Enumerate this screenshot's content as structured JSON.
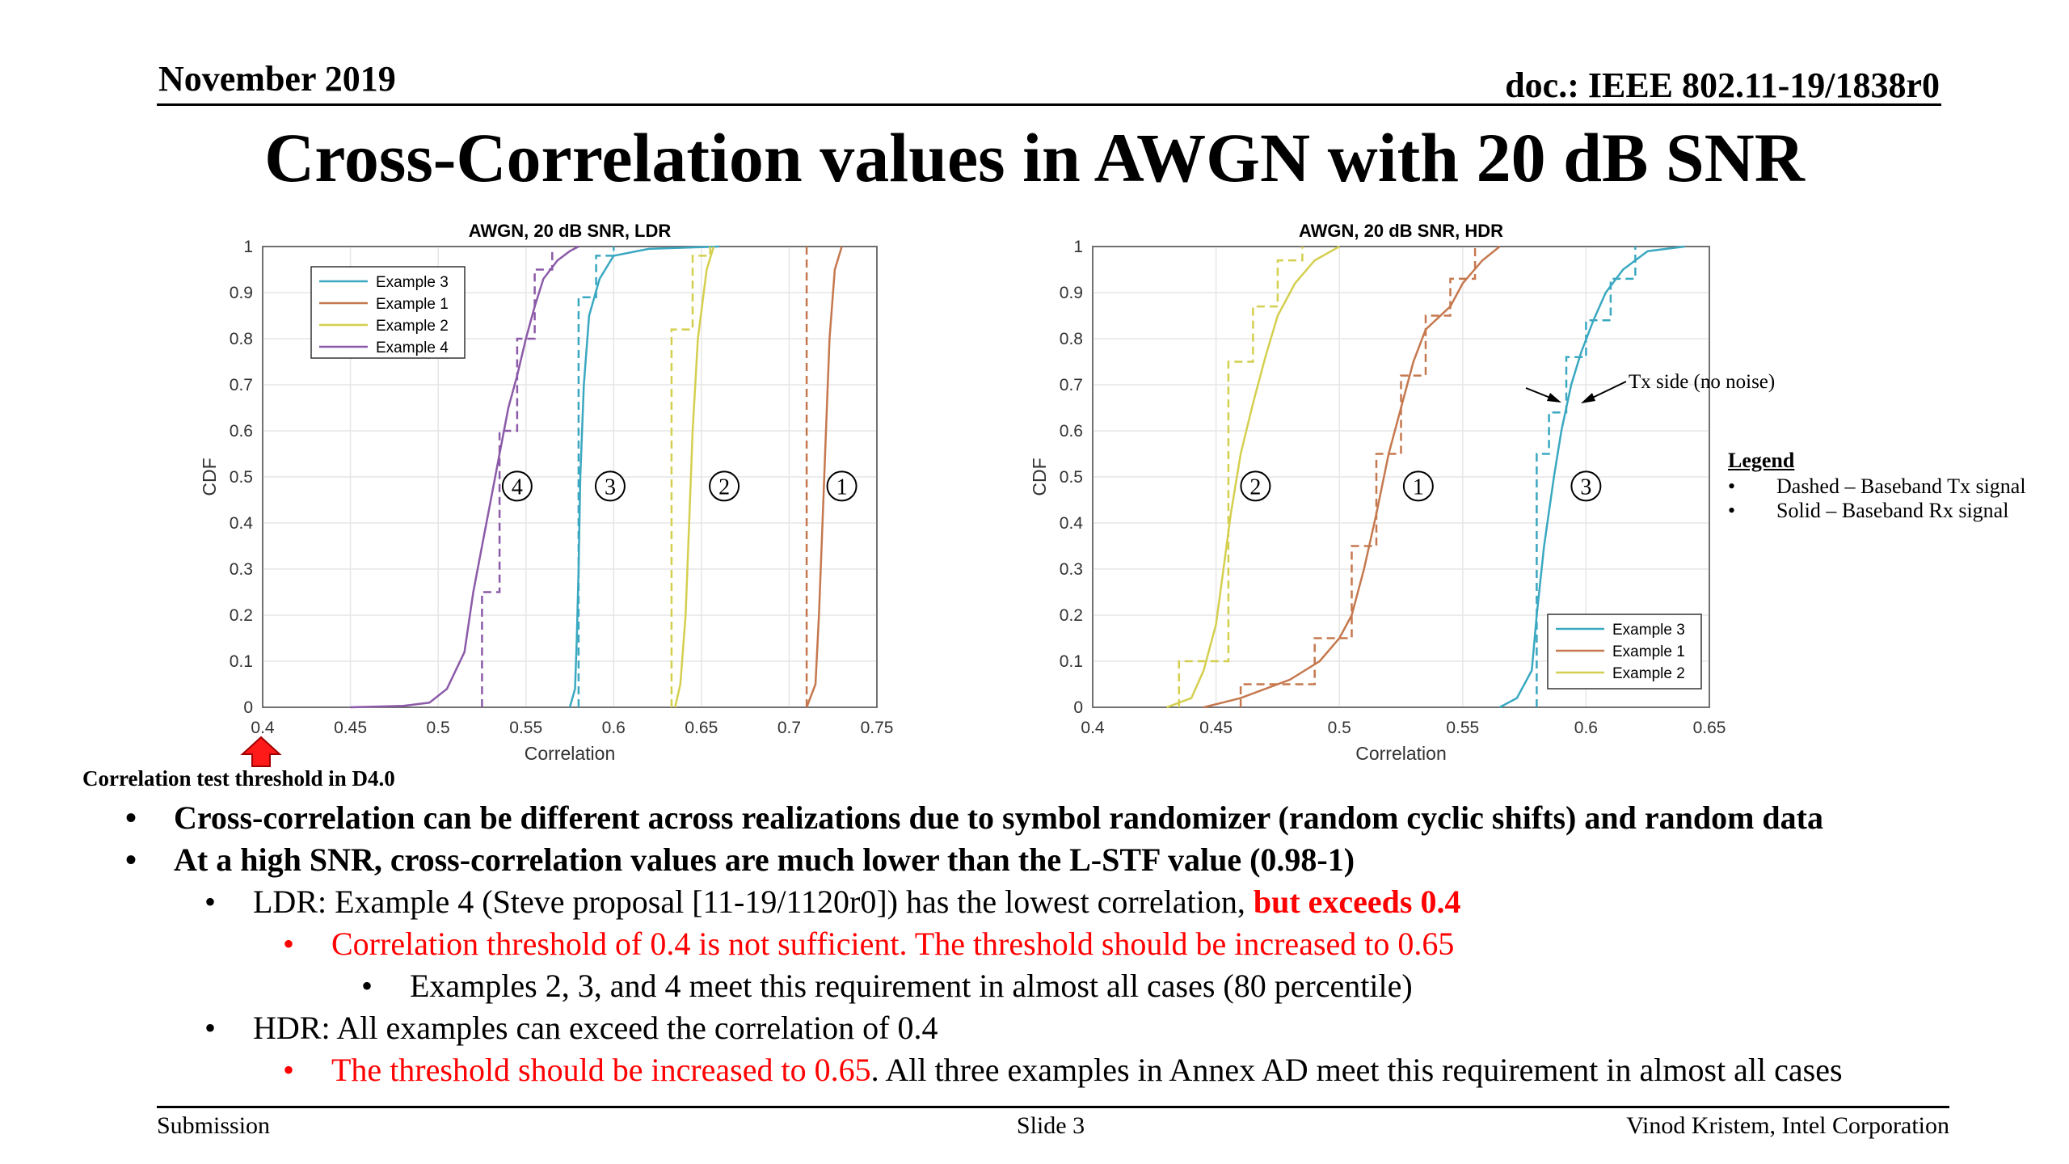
{
  "header": {
    "date": "November 2019",
    "doc": "doc.: IEEE 802.11-19/1838r0"
  },
  "title": "Cross-Correlation values in AWGN with 20 dB SNR",
  "colors": {
    "example3": "#3aa8c1",
    "example1": "#c5784e",
    "example2": "#d4cf4e",
    "example4": "#8b5aa8",
    "red": "#ff0000",
    "grid": "#e6e6e6"
  },
  "chart_data": [
    {
      "type": "line",
      "title": "AWGN, 20 dB SNR, LDR",
      "xlabel": "Correlation",
      "ylabel": "CDF",
      "xlim": [
        0.4,
        0.75
      ],
      "ylim": [
        0,
        1
      ],
      "xticks": [
        "0.4",
        "0.45",
        "0.5",
        "0.55",
        "0.6",
        "0.65",
        "0.7",
        "0.75"
      ],
      "yticks": [
        "0",
        "0.1",
        "0.2",
        "0.3",
        "0.4",
        "0.5",
        "0.6",
        "0.7",
        "0.8",
        "0.9",
        "1"
      ],
      "grid": true,
      "legend_position": "top-left",
      "legend": [
        "Example 3",
        "Example 1",
        "Example 2",
        "Example 4"
      ],
      "series": [
        {
          "name": "Example 3",
          "color_key": "example3",
          "solid": [
            [
              0.575,
              0
            ],
            [
              0.578,
              0.04
            ],
            [
              0.579,
              0.15
            ],
            [
              0.58,
              0.3
            ],
            [
              0.581,
              0.5
            ],
            [
              0.583,
              0.7
            ],
            [
              0.586,
              0.85
            ],
            [
              0.592,
              0.93
            ],
            [
              0.6,
              0.98
            ],
            [
              0.62,
              0.995
            ],
            [
              0.66,
              1
            ]
          ],
          "dashed": [
            [
              0.58,
              0
            ],
            [
              0.58,
              0.89
            ],
            [
              0.59,
              0.89
            ],
            [
              0.59,
              0.98
            ],
            [
              0.6,
              0.98
            ],
            [
              0.6,
              1
            ]
          ]
        },
        {
          "name": "Example 1",
          "color_key": "example1",
          "solid": [
            [
              0.71,
              0
            ],
            [
              0.715,
              0.05
            ],
            [
              0.717,
              0.2
            ],
            [
              0.719,
              0.4
            ],
            [
              0.721,
              0.6
            ],
            [
              0.723,
              0.8
            ],
            [
              0.726,
              0.95
            ],
            [
              0.73,
              1
            ]
          ],
          "dashed": [
            [
              0.71,
              0
            ],
            [
              0.71,
              1
            ]
          ]
        },
        {
          "name": "Example 2",
          "color_key": "example2",
          "solid": [
            [
              0.635,
              0
            ],
            [
              0.638,
              0.05
            ],
            [
              0.641,
              0.2
            ],
            [
              0.643,
              0.4
            ],
            [
              0.645,
              0.6
            ],
            [
              0.648,
              0.8
            ],
            [
              0.653,
              0.95
            ],
            [
              0.657,
              1
            ]
          ],
          "dashed": [
            [
              0.633,
              0
            ],
            [
              0.633,
              0.82
            ],
            [
              0.645,
              0.82
            ],
            [
              0.645,
              0.98
            ],
            [
              0.655,
              0.98
            ],
            [
              0.655,
              1
            ]
          ]
        },
        {
          "name": "Example 4",
          "color_key": "example4",
          "solid": [
            [
              0.45,
              0
            ],
            [
              0.48,
              0.003
            ],
            [
              0.495,
              0.01
            ],
            [
              0.505,
              0.04
            ],
            [
              0.515,
              0.12
            ],
            [
              0.52,
              0.25
            ],
            [
              0.525,
              0.35
            ],
            [
              0.53,
              0.45
            ],
            [
              0.535,
              0.55
            ],
            [
              0.54,
              0.65
            ],
            [
              0.545,
              0.72
            ],
            [
              0.55,
              0.8
            ],
            [
              0.555,
              0.87
            ],
            [
              0.56,
              0.93
            ],
            [
              0.568,
              0.97
            ],
            [
              0.575,
              0.99
            ],
            [
              0.58,
              1
            ]
          ],
          "dashed": [
            [
              0.525,
              0
            ],
            [
              0.525,
              0.25
            ],
            [
              0.535,
              0.25
            ],
            [
              0.535,
              0.6
            ],
            [
              0.545,
              0.6
            ],
            [
              0.545,
              0.8
            ],
            [
              0.555,
              0.8
            ],
            [
              0.555,
              0.95
            ],
            [
              0.565,
              0.95
            ],
            [
              0.565,
              1
            ]
          ]
        }
      ],
      "annotations": [
        {
          "label": "4",
          "x": 0.545,
          "y": 0.48
        },
        {
          "label": "3",
          "x": 0.598,
          "y": 0.48
        },
        {
          "label": "2",
          "x": 0.663,
          "y": 0.48
        },
        {
          "label": "1",
          "x": 0.73,
          "y": 0.48
        }
      ]
    },
    {
      "type": "line",
      "title": "AWGN, 20 dB SNR, HDR",
      "xlabel": "Correlation",
      "ylabel": "CDF",
      "xlim": [
        0.4,
        0.65
      ],
      "ylim": [
        0,
        1
      ],
      "xticks": [
        "0.4",
        "0.45",
        "0.5",
        "0.55",
        "0.6",
        "0.65"
      ],
      "yticks": [
        "0",
        "0.1",
        "0.2",
        "0.3",
        "0.4",
        "0.5",
        "0.6",
        "0.7",
        "0.8",
        "0.9",
        "1"
      ],
      "grid": true,
      "legend_position": "bottom-right",
      "legend": [
        "Example 3",
        "Example 1",
        "Example 2"
      ],
      "series": [
        {
          "name": "Example 3",
          "color_key": "example3",
          "solid": [
            [
              0.565,
              0
            ],
            [
              0.572,
              0.02
            ],
            [
              0.578,
              0.08
            ],
            [
              0.58,
              0.2
            ],
            [
              0.583,
              0.35
            ],
            [
              0.587,
              0.5
            ],
            [
              0.59,
              0.6
            ],
            [
              0.594,
              0.7
            ],
            [
              0.598,
              0.77
            ],
            [
              0.603,
              0.84
            ],
            [
              0.608,
              0.9
            ],
            [
              0.615,
              0.95
            ],
            [
              0.625,
              0.99
            ],
            [
              0.64,
              1
            ]
          ],
          "dashed": [
            [
              0.58,
              0
            ],
            [
              0.58,
              0.55
            ],
            [
              0.585,
              0.55
            ],
            [
              0.585,
              0.64
            ],
            [
              0.592,
              0.64
            ],
            [
              0.592,
              0.76
            ],
            [
              0.6,
              0.76
            ],
            [
              0.6,
              0.84
            ],
            [
              0.61,
              0.84
            ],
            [
              0.61,
              0.93
            ],
            [
              0.62,
              0.93
            ],
            [
              0.62,
              1
            ]
          ]
        },
        {
          "name": "Example 1",
          "color_key": "example1",
          "solid": [
            [
              0.445,
              0
            ],
            [
              0.46,
              0.02
            ],
            [
              0.48,
              0.06
            ],
            [
              0.492,
              0.1
            ],
            [
              0.5,
              0.15
            ],
            [
              0.505,
              0.2
            ],
            [
              0.51,
              0.3
            ],
            [
              0.515,
              0.42
            ],
            [
              0.52,
              0.55
            ],
            [
              0.525,
              0.65
            ],
            [
              0.53,
              0.75
            ],
            [
              0.535,
              0.82
            ],
            [
              0.545,
              0.87
            ],
            [
              0.55,
              0.92
            ],
            [
              0.558,
              0.97
            ],
            [
              0.565,
              1
            ]
          ],
          "dashed": [
            [
              0.46,
              0
            ],
            [
              0.46,
              0.05
            ],
            [
              0.49,
              0.05
            ],
            [
              0.49,
              0.15
            ],
            [
              0.505,
              0.15
            ],
            [
              0.505,
              0.35
            ],
            [
              0.515,
              0.35
            ],
            [
              0.515,
              0.55
            ],
            [
              0.525,
              0.55
            ],
            [
              0.525,
              0.72
            ],
            [
              0.535,
              0.72
            ],
            [
              0.535,
              0.85
            ],
            [
              0.545,
              0.85
            ],
            [
              0.545,
              0.93
            ],
            [
              0.555,
              0.93
            ],
            [
              0.555,
              1
            ]
          ]
        },
        {
          "name": "Example 2",
          "color_key": "example2",
          "solid": [
            [
              0.43,
              0
            ],
            [
              0.44,
              0.02
            ],
            [
              0.445,
              0.08
            ],
            [
              0.45,
              0.18
            ],
            [
              0.453,
              0.3
            ],
            [
              0.456,
              0.42
            ],
            [
              0.46,
              0.55
            ],
            [
              0.465,
              0.66
            ],
            [
              0.47,
              0.76
            ],
            [
              0.475,
              0.85
            ],
            [
              0.482,
              0.92
            ],
            [
              0.49,
              0.97
            ],
            [
              0.5,
              1
            ]
          ],
          "dashed": [
            [
              0.435,
              0
            ],
            [
              0.435,
              0.1
            ],
            [
              0.455,
              0.1
            ],
            [
              0.455,
              0.75
            ],
            [
              0.465,
              0.75
            ],
            [
              0.465,
              0.87
            ],
            [
              0.475,
              0.87
            ],
            [
              0.475,
              0.97
            ],
            [
              0.485,
              0.97
            ],
            [
              0.485,
              1
            ]
          ]
        }
      ],
      "annotations": [
        {
          "label": "2",
          "x": 0.466,
          "y": 0.48
        },
        {
          "label": "1",
          "x": 0.532,
          "y": 0.48
        },
        {
          "label": "3",
          "x": 0.6,
          "y": 0.48
        }
      ],
      "tx_label": "Tx side (no noise)"
    }
  ],
  "threshold_label": "Correlation test threshold in D4.0",
  "legend_note": {
    "title": "Legend",
    "items": [
      "Dashed – Baseband Tx signal",
      "Solid – Baseband Rx signal"
    ]
  },
  "bullets": [
    {
      "text": "Cross-correlation can be different across realizations due to symbol randomizer (random cyclic shifts) and random data"
    },
    {
      "text": "At a high SNR, cross-correlation values are much lower than the L-STF value (0.98-1)"
    },
    {
      "text": "LDR: Example 4 (Steve proposal [11-19/1120r0]) has the lowest correlation, ",
      "emph": "but exceeds 0.4"
    },
    {
      "text": "Correlation threshold of 0.4 is not sufficient. The threshold should be increased to 0.65"
    },
    {
      "text": "Examples 2, 3, and 4 meet this requirement in almost all cases (80 percentile)"
    },
    {
      "text": "HDR: All examples can exceed the correlation of 0.4"
    },
    {
      "red": "The threshold should be increased to 0.65",
      "text": ". All three examples in Annex AD meet this requirement in almost all cases"
    }
  ],
  "bullet_symbol": "•",
  "footer": {
    "left": "Submission",
    "center": "Slide 3",
    "right": "Vinod Kristem, Intel Corporation"
  }
}
